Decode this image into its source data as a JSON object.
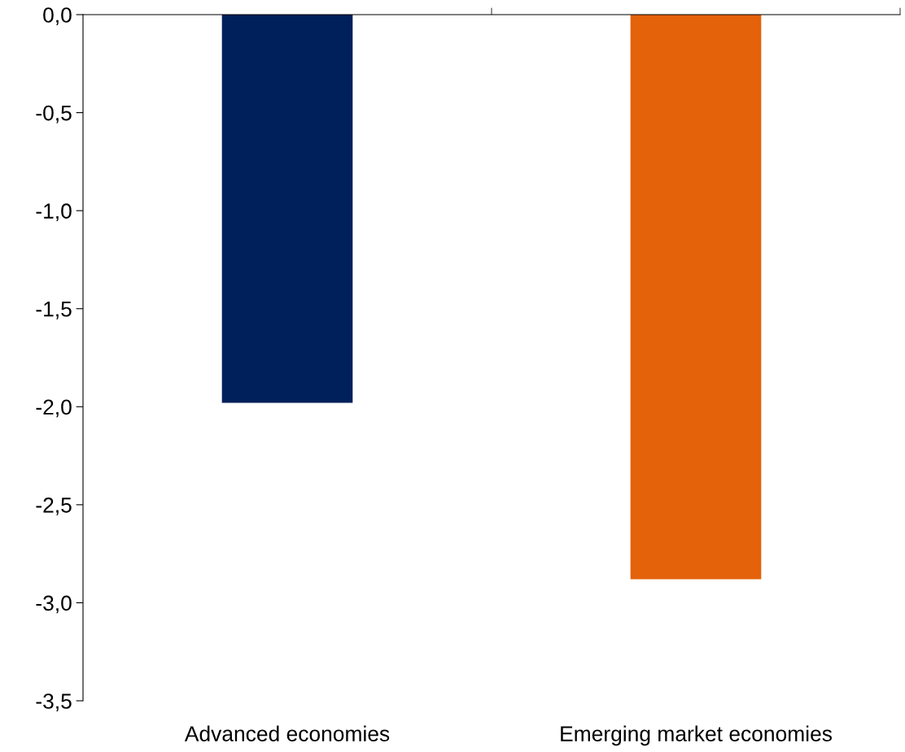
{
  "chart_data": {
    "type": "bar",
    "categories": [
      "Advanced economies",
      "Emerging market economies"
    ],
    "values": [
      -1.98,
      -2.88
    ],
    "colors": [
      "#00205b",
      "#e4620a"
    ],
    "ylim": [
      -3.5,
      0
    ],
    "yticks": [
      {
        "value": 0,
        "label": "0,0"
      },
      {
        "value": -0.5,
        "label": "-0,5"
      },
      {
        "value": -1,
        "label": "-1,0"
      },
      {
        "value": -1.5,
        "label": "-1,5"
      },
      {
        "value": -2,
        "label": "-2,0"
      },
      {
        "value": -2.5,
        "label": "-2,5"
      },
      {
        "value": -3,
        "label": "-3,0"
      },
      {
        "value": -3.5,
        "label": "-3,5"
      }
    ],
    "grid": false,
    "legend": false
  }
}
